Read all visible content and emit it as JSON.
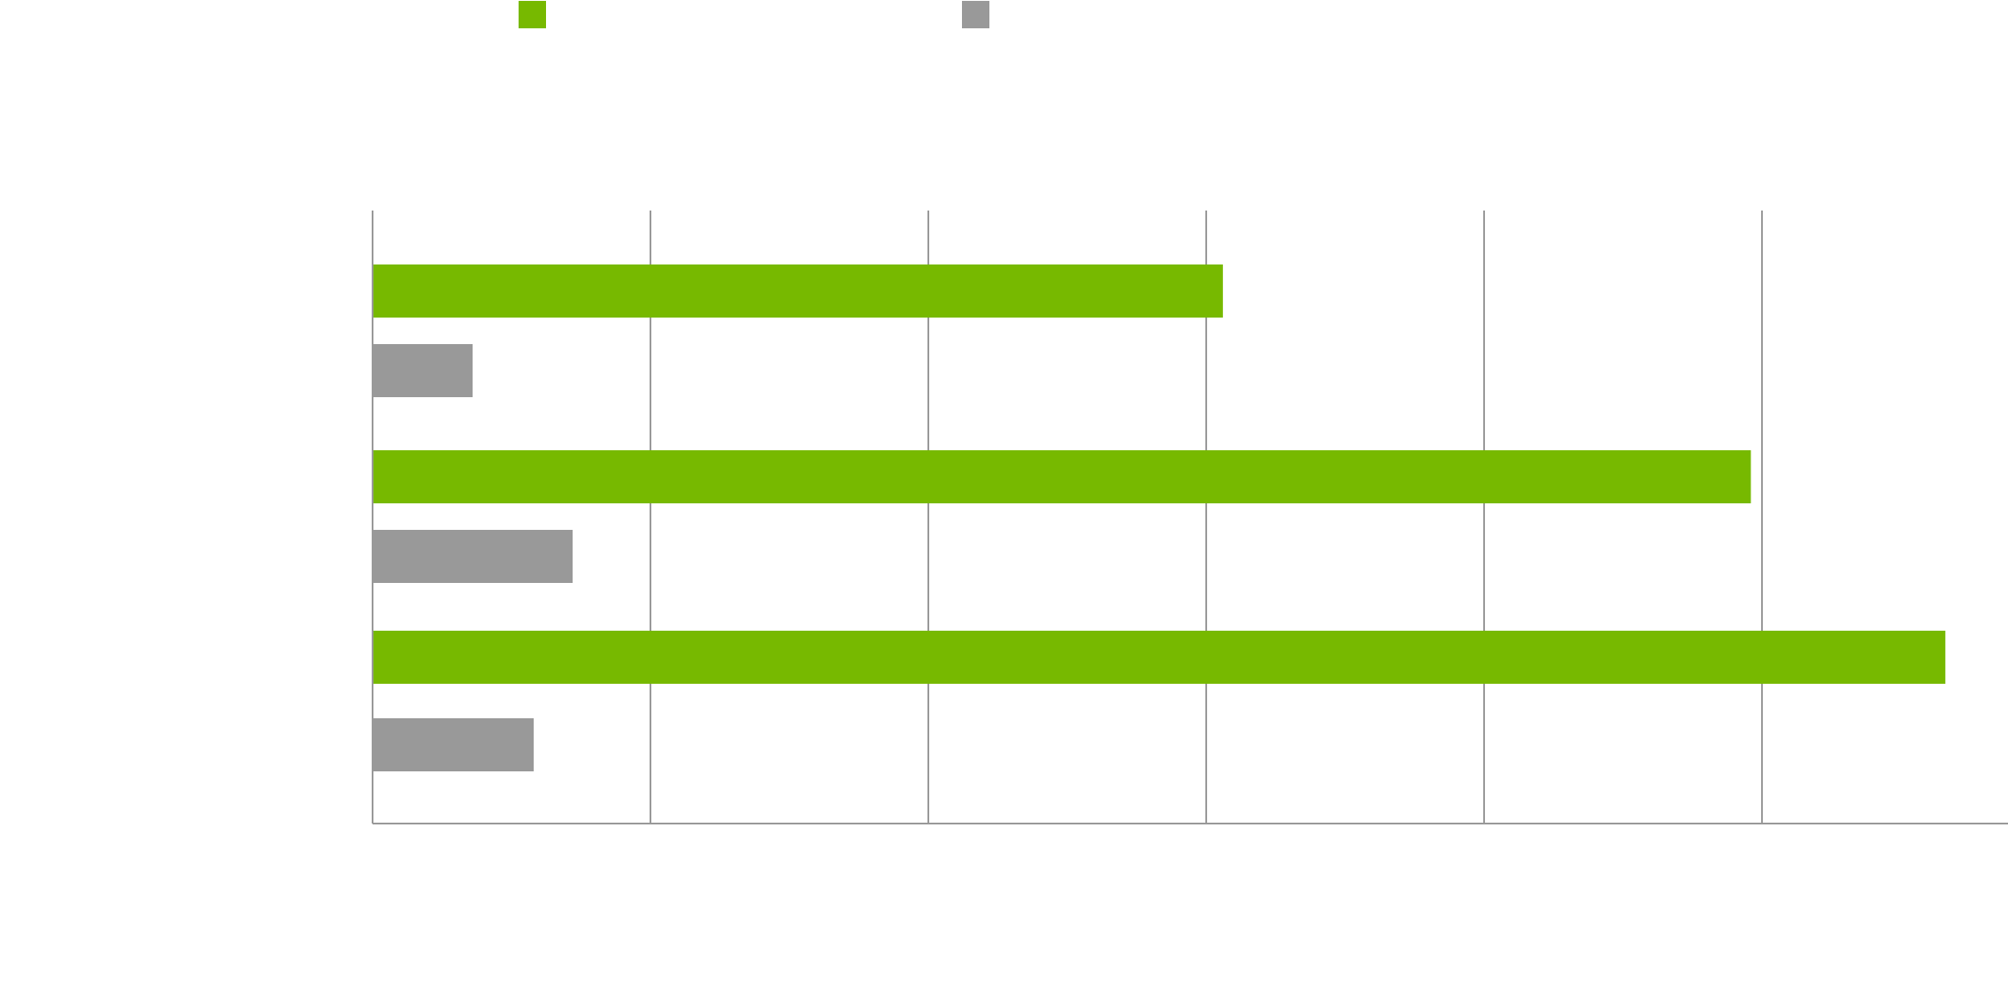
{
  "chart_data": {
    "type": "bar",
    "orientation": "horizontal",
    "categories": [
      "",
      "",
      ""
    ],
    "series": [
      {
        "values": [
          153,
          248,
          283
        ],
        "color": "#77b900"
      },
      {
        "values": [
          18,
          36,
          29
        ],
        "color": "#999999"
      }
    ],
    "xlim": [
      0,
      300
    ],
    "x_gridlines": [
      0,
      50,
      100,
      150,
      200,
      250
    ],
    "grid": true,
    "legend": "top-left",
    "axis_color": "#999999"
  }
}
